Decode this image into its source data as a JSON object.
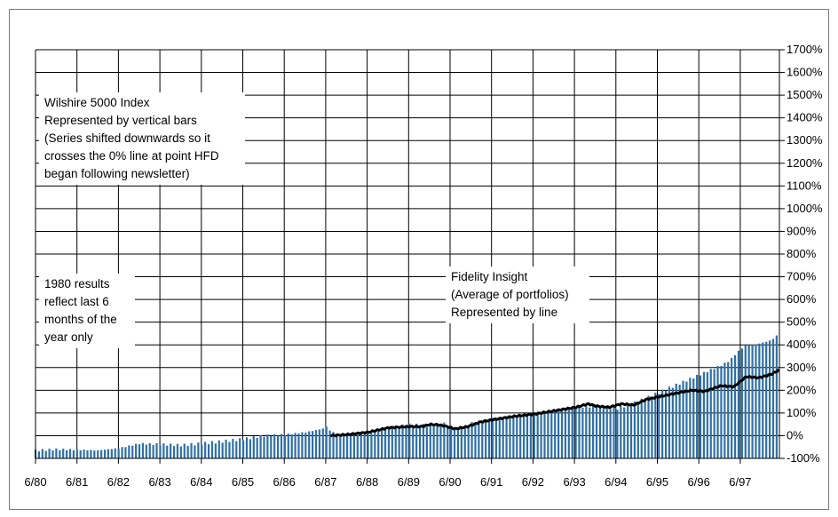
{
  "chart_data": {
    "type": "bar",
    "title": "",
    "xlabel": "",
    "ylabel": "",
    "ylim": [
      -100,
      1700
    ],
    "y_ticks": [
      "-100%",
      "0%",
      "100%",
      "200%",
      "300%",
      "400%",
      "500%",
      "600%",
      "700%",
      "800%",
      "900%",
      "1000%",
      "1100%",
      "1200%",
      "1300%",
      "1400%",
      "1500%",
      "1600%",
      "1700%"
    ],
    "x_ticks": [
      "6/80",
      "6/81",
      "6/82",
      "6/83",
      "6/84",
      "6/85",
      "6/86",
      "6/87",
      "6/88",
      "6/89",
      "6/90",
      "6/91",
      "6/92",
      "6/93",
      "6/94",
      "6/95",
      "6/96",
      "6/97"
    ],
    "grid": true,
    "x_range": [
      1980.5,
      1998.4
    ],
    "series": [
      {
        "kind": "bars",
        "color": "#2e6fa6",
        "points": [
          [
            1980.5,
            -65
          ],
          [
            1981.0,
            -60
          ],
          [
            1981.5,
            -62
          ],
          [
            1982.0,
            -65
          ],
          [
            1982.5,
            -55
          ],
          [
            1983.0,
            -35
          ],
          [
            1983.5,
            -38
          ],
          [
            1984.0,
            -42
          ],
          [
            1984.5,
            -35
          ],
          [
            1985.0,
            -25
          ],
          [
            1985.5,
            -15
          ],
          [
            1986.0,
            0
          ],
          [
            1986.5,
            5
          ],
          [
            1987.0,
            15
          ],
          [
            1987.4,
            30
          ],
          [
            1987.5,
            40
          ],
          [
            1987.6,
            20
          ],
          [
            1987.9,
            0
          ],
          [
            1988.0,
            5
          ],
          [
            1988.5,
            10
          ],
          [
            1989.0,
            35
          ],
          [
            1989.5,
            48
          ],
          [
            1990.0,
            45
          ],
          [
            1990.3,
            55
          ],
          [
            1990.6,
            30
          ],
          [
            1990.9,
            40
          ],
          [
            1991.0,
            55
          ],
          [
            1991.5,
            75
          ],
          [
            1992.0,
            85
          ],
          [
            1992.5,
            95
          ],
          [
            1993.0,
            110
          ],
          [
            1993.5,
            125
          ],
          [
            1994.0,
            130
          ],
          [
            1994.5,
            120
          ],
          [
            1995.0,
            150
          ],
          [
            1995.5,
            190
          ],
          [
            1996.0,
            230
          ],
          [
            1996.5,
            270
          ],
          [
            1997.0,
            310
          ],
          [
            1997.2,
            330
          ],
          [
            1997.4,
            370
          ],
          [
            1997.6,
            400
          ],
          [
            1997.8,
            400
          ],
          [
            1998.0,
            410
          ],
          [
            1998.2,
            420
          ],
          [
            1998.4,
            450
          ]
        ]
      },
      {
        "kind": "line",
        "color": "#000000",
        "points": [
          [
            1987.6,
            0
          ],
          [
            1988.0,
            5
          ],
          [
            1988.5,
            15
          ],
          [
            1989.0,
            35
          ],
          [
            1989.5,
            40
          ],
          [
            1989.8,
            40
          ],
          [
            1990.0,
            50
          ],
          [
            1990.3,
            45
          ],
          [
            1990.6,
            30
          ],
          [
            1990.9,
            40
          ],
          [
            1991.2,
            60
          ],
          [
            1991.5,
            70
          ],
          [
            1992.0,
            85
          ],
          [
            1992.5,
            95
          ],
          [
            1993.0,
            110
          ],
          [
            1993.5,
            125
          ],
          [
            1993.8,
            140
          ],
          [
            1994.0,
            130
          ],
          [
            1994.3,
            125
          ],
          [
            1994.6,
            140
          ],
          [
            1994.9,
            135
          ],
          [
            1995.2,
            160
          ],
          [
            1995.6,
            175
          ],
          [
            1996.0,
            190
          ],
          [
            1996.3,
            200
          ],
          [
            1996.6,
            195
          ],
          [
            1997.0,
            220
          ],
          [
            1997.3,
            215
          ],
          [
            1997.6,
            260
          ],
          [
            1997.9,
            255
          ],
          [
            1998.2,
            270
          ],
          [
            1998.4,
            290
          ]
        ]
      }
    ]
  },
  "annotations": {
    "wilshire": {
      "lines": [
        "Wilshire 5000 Index",
        "Represented by vertical bars",
        "(Series shifted downwards so it",
        "crosses the 0% line at point HFD",
        "began following newsletter)"
      ]
    },
    "note_1980": {
      "lines": [
        "1980 results",
        "reflect last 6",
        "months of the",
        "year only"
      ]
    },
    "fidelity": {
      "lines": [
        "Fidelity Insight",
        "(Average of portfolios)",
        "Represented by line"
      ]
    }
  }
}
